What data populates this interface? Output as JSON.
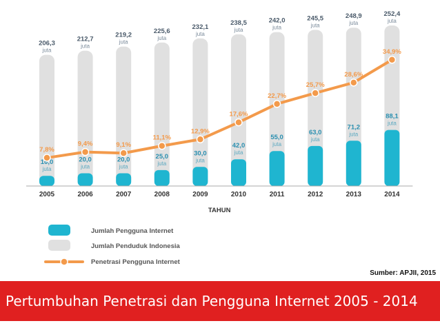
{
  "chart_data": {
    "type": "bar",
    "xlabel": "TAHUN",
    "categories": [
      "2005",
      "2006",
      "2007",
      "2008",
      "2009",
      "2010",
      "2011",
      "2012",
      "2013",
      "2014"
    ],
    "series": [
      {
        "name": "Jumlah Pengguna Internet",
        "values": [
          16.0,
          20.0,
          20.0,
          25.0,
          30.0,
          42.0,
          55.0,
          63.0,
          71.2,
          88.1
        ],
        "labels": [
          "16,0",
          "20,0",
          "20,0",
          "25,0",
          "30,0",
          "42,0",
          "55,0",
          "63,0",
          "71,2",
          "88,1"
        ],
        "unit": "juta",
        "color": "#1fb5d0"
      },
      {
        "name": "Jumlah Penduduk Indonesia",
        "values": [
          206.3,
          212.7,
          219.2,
          225.6,
          232.1,
          238.5,
          242.0,
          245.5,
          248.9,
          252.4
        ],
        "labels": [
          "206,3",
          "212,7",
          "219,2",
          "225,6",
          "232,1",
          "238,5",
          "242,0",
          "245,5",
          "248,9",
          "252,4"
        ],
        "unit": "juta",
        "color": "#e0e0e0"
      },
      {
        "name": "Penetrasi Pengguna Internet",
        "values": [
          7.8,
          9.4,
          9.1,
          11.1,
          12.9,
          17.6,
          22.7,
          25.7,
          28.6,
          34.9
        ],
        "labels": [
          "7,8%",
          "9,4%",
          "9,1%",
          "11,1%",
          "12,9%",
          "17,6%",
          "22,7%",
          "25,7%",
          "28,6%",
          "34,9%"
        ],
        "color": "#f39a4b"
      }
    ],
    "ylim": [
      0,
      260
    ],
    "penetration_ylim": [
      0,
      40
    ],
    "grid": false,
    "legend": "bottom-left"
  },
  "source": "Sumber: APJII, 2015",
  "title": "Pertumbuhan Penetrasi dan Pengguna Internet 2005 - 2014"
}
